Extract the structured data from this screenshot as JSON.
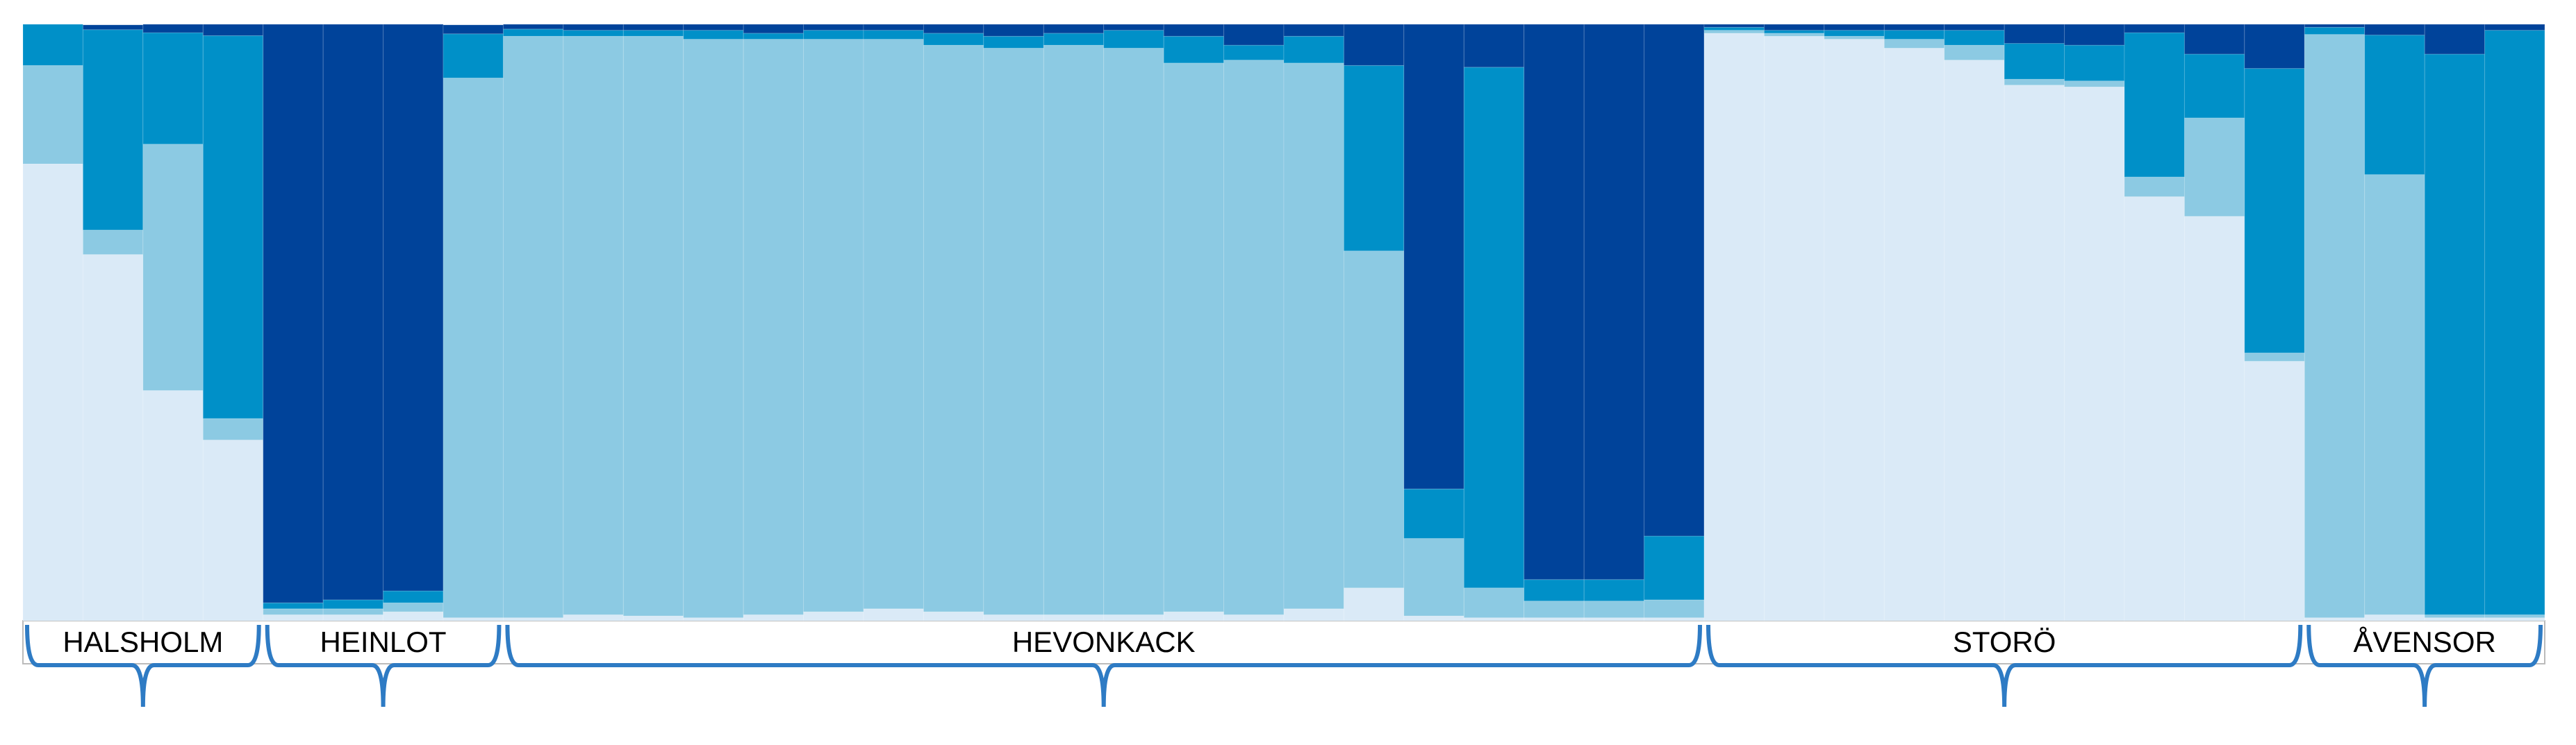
{
  "chart_data": {
    "type": "stacked_bar",
    "categories": [
      null,
      null,
      null,
      null,
      null,
      null,
      null,
      null,
      null,
      null,
      null,
      null,
      null,
      null,
      null,
      null,
      null,
      null,
      null,
      null,
      null,
      null,
      null,
      null,
      null,
      null,
      null,
      null,
      null,
      null,
      null,
      null,
      null,
      null,
      null,
      null,
      null,
      null,
      null,
      null,
      null,
      null
    ],
    "ylim": [
      0,
      1
    ],
    "groups": [
      {
        "label": "HALSHOLM",
        "size": 4
      },
      {
        "label": "HEINLOT",
        "size": 4
      },
      {
        "label": "HEVONKACK",
        "size": 20
      },
      {
        "label": "STORÖ",
        "size": 10
      },
      {
        "label": "ÅVENSOR",
        "size": 4
      }
    ],
    "series": [
      {
        "color": "#daeaf7",
        "values": [
          0.766,
          0.614,
          0.386,
          0.303,
          0.01,
          0.01,
          0.015,
          0.005,
          0.005,
          0.01,
          0.008,
          0.005,
          0.01,
          0.015,
          0.02,
          0.015,
          0.01,
          0.01,
          0.01,
          0.015,
          0.01,
          0.02,
          0.055,
          0.008,
          0.005,
          0.005,
          0.005,
          0.005,
          0.985,
          0.98,
          0.975,
          0.96,
          0.94,
          0.898,
          0.895,
          0.711,
          0.678,
          0.435,
          0.005,
          0.01,
          0.005,
          0.005
        ]
      },
      {
        "color": "#8ccae3",
        "values": [
          0.165,
          0.041,
          0.413,
          0.036,
          0.01,
          0.01,
          0.015,
          0.905,
          0.975,
          0.97,
          0.972,
          0.97,
          0.965,
          0.96,
          0.955,
          0.95,
          0.95,
          0.955,
          0.95,
          0.92,
          0.93,
          0.915,
          0.565,
          0.13,
          0.05,
          0.028,
          0.028,
          0.03,
          0.005,
          0.005,
          0.005,
          0.015,
          0.025,
          0.01,
          0.01,
          0.033,
          0.165,
          0.014,
          0.978,
          0.738,
          0.005,
          0.005
        ]
      },
      {
        "color": "#0090c8",
        "values": [
          0.069,
          0.336,
          0.187,
          0.642,
          0.01,
          0.015,
          0.02,
          0.074,
          0.012,
          0.01,
          0.01,
          0.015,
          0.01,
          0.015,
          0.015,
          0.02,
          0.02,
          0.02,
          0.03,
          0.045,
          0.025,
          0.045,
          0.311,
          0.083,
          0.873,
          0.036,
          0.036,
          0.107,
          0.005,
          0.005,
          0.01,
          0.015,
          0.025,
          0.06,
          0.06,
          0.242,
          0.107,
          0.477,
          0.012,
          0.234,
          0.94,
          0.98
        ]
      },
      {
        "color": "#00439a",
        "values": [
          0,
          0.008,
          0.014,
          0.019,
          0.97,
          0.965,
          0.95,
          0.015,
          0.008,
          0.01,
          0.01,
          0.01,
          0.015,
          0.01,
          0.01,
          0.015,
          0.02,
          0.015,
          0.01,
          0.02,
          0.035,
          0.02,
          0.069,
          0.779,
          0.072,
          0.931,
          0.931,
          0.858,
          0.005,
          0.01,
          0.01,
          0.01,
          0.01,
          0.032,
          0.035,
          0.014,
          0.05,
          0.074,
          0.005,
          0.018,
          0.05,
          0.01
        ]
      }
    ]
  }
}
